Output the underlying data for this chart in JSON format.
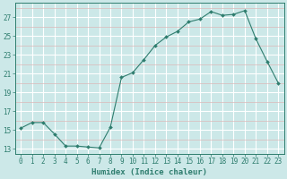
{
  "x": [
    0,
    1,
    2,
    3,
    4,
    5,
    6,
    7,
    8,
    9,
    10,
    11,
    12,
    13,
    14,
    15,
    16,
    17,
    18,
    19,
    20,
    21,
    22,
    23
  ],
  "y": [
    15.2,
    15.8,
    15.8,
    14.6,
    13.3,
    13.3,
    13.2,
    13.1,
    15.3,
    20.6,
    21.1,
    22.5,
    24.0,
    24.9,
    25.5,
    26.5,
    26.8,
    27.6,
    27.2,
    27.3,
    27.7,
    24.7,
    22.3,
    20.0
  ],
  "line_color": "#2e7d6e",
  "marker": "D",
  "marker_size": 2.0,
  "bg_color": "#cce8e8",
  "white_grid": "#ffffff",
  "pink_grid": "#dbb8b8",
  "xlabel": "Humidex (Indice chaleur)",
  "xlim": [
    -0.5,
    23.5
  ],
  "ylim": [
    12.5,
    28.5
  ],
  "yticks": [
    13,
    15,
    17,
    19,
    21,
    23,
    25,
    27
  ],
  "xticks": [
    0,
    1,
    2,
    3,
    4,
    5,
    6,
    7,
    8,
    9,
    10,
    11,
    12,
    13,
    14,
    15,
    16,
    17,
    18,
    19,
    20,
    21,
    22,
    23
  ],
  "tick_fontsize": 5.5,
  "xlabel_fontsize": 6.5
}
